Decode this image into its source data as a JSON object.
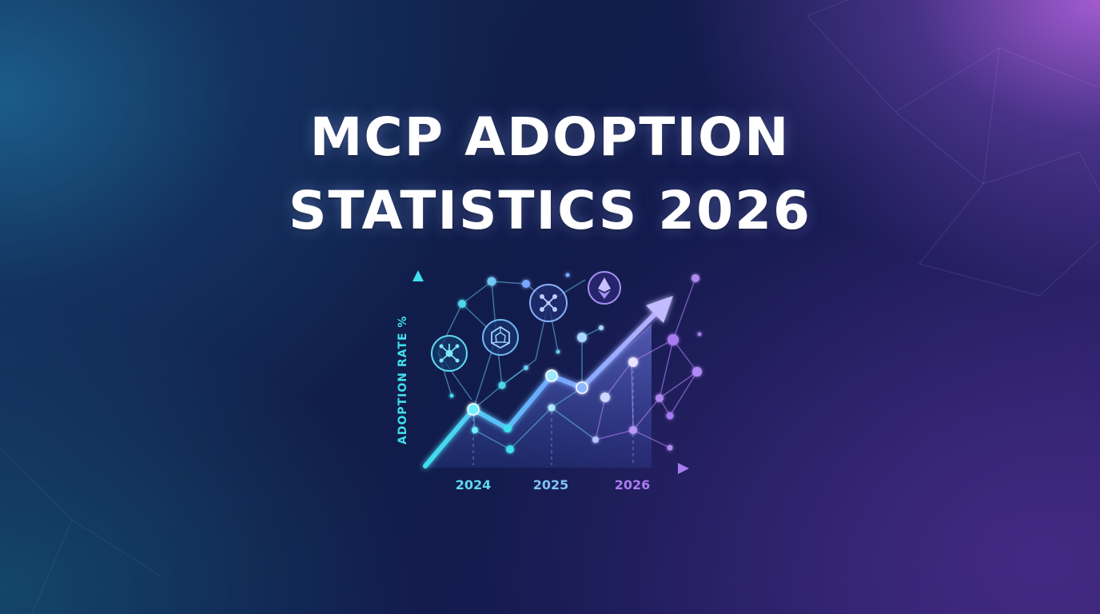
{
  "title": {
    "line1": "MCP ADOPTION",
    "line2": "STATISTICS 2026"
  },
  "chart_data": {
    "type": "line",
    "ylabel": "ADOPTION RATE %",
    "categories": [
      "2024",
      "2025",
      "2026"
    ]
  },
  "colors": {
    "background_dark": "#111d4a",
    "background_teal": "#1c5f8c",
    "background_purple": "#aa5fd7",
    "cyan": "#3fe0ee",
    "blue": "#6fa8ff",
    "purple": "#a87cf0",
    "title_text": "#ffffff"
  },
  "icons": [
    "network-hub-icon",
    "shield-node-icon",
    "crossed-network-icon",
    "ethereum-diamond-icon"
  ]
}
